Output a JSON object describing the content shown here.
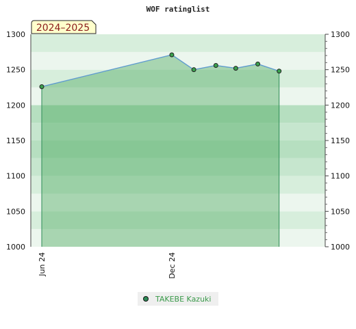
{
  "chart_data": {
    "type": "area",
    "title": "WOF ratinglist",
    "season_label": "2024–2025",
    "xlabel": "",
    "ylabel": "",
    "ylim": [
      1000,
      1300
    ],
    "y_ticks": [
      1000,
      1050,
      1100,
      1150,
      1200,
      1250,
      1300
    ],
    "x_range": [
      "2024-06-01",
      "2025-07-01"
    ],
    "x_ticks": [
      {
        "label": "Jun 24",
        "date": "2024-06-01"
      },
      {
        "label": "Dec 24",
        "date": "2024-12-01"
      }
    ],
    "grid": true,
    "legend_position": "bottom-center",
    "series": [
      {
        "name": "TAKEBE Kazuki",
        "color": "#2e8b57",
        "points": [
          {
            "x": "2024-06-01",
            "y": 1226
          },
          {
            "x": "2024-12-01",
            "y": 1271
          },
          {
            "x": "2025-01-01",
            "y": 1250
          },
          {
            "x": "2025-02-01",
            "y": 1256
          },
          {
            "x": "2025-03-01",
            "y": 1252
          },
          {
            "x": "2025-04-01",
            "y": 1258
          },
          {
            "x": "2025-05-01",
            "y": 1248
          }
        ]
      }
    ]
  }
}
